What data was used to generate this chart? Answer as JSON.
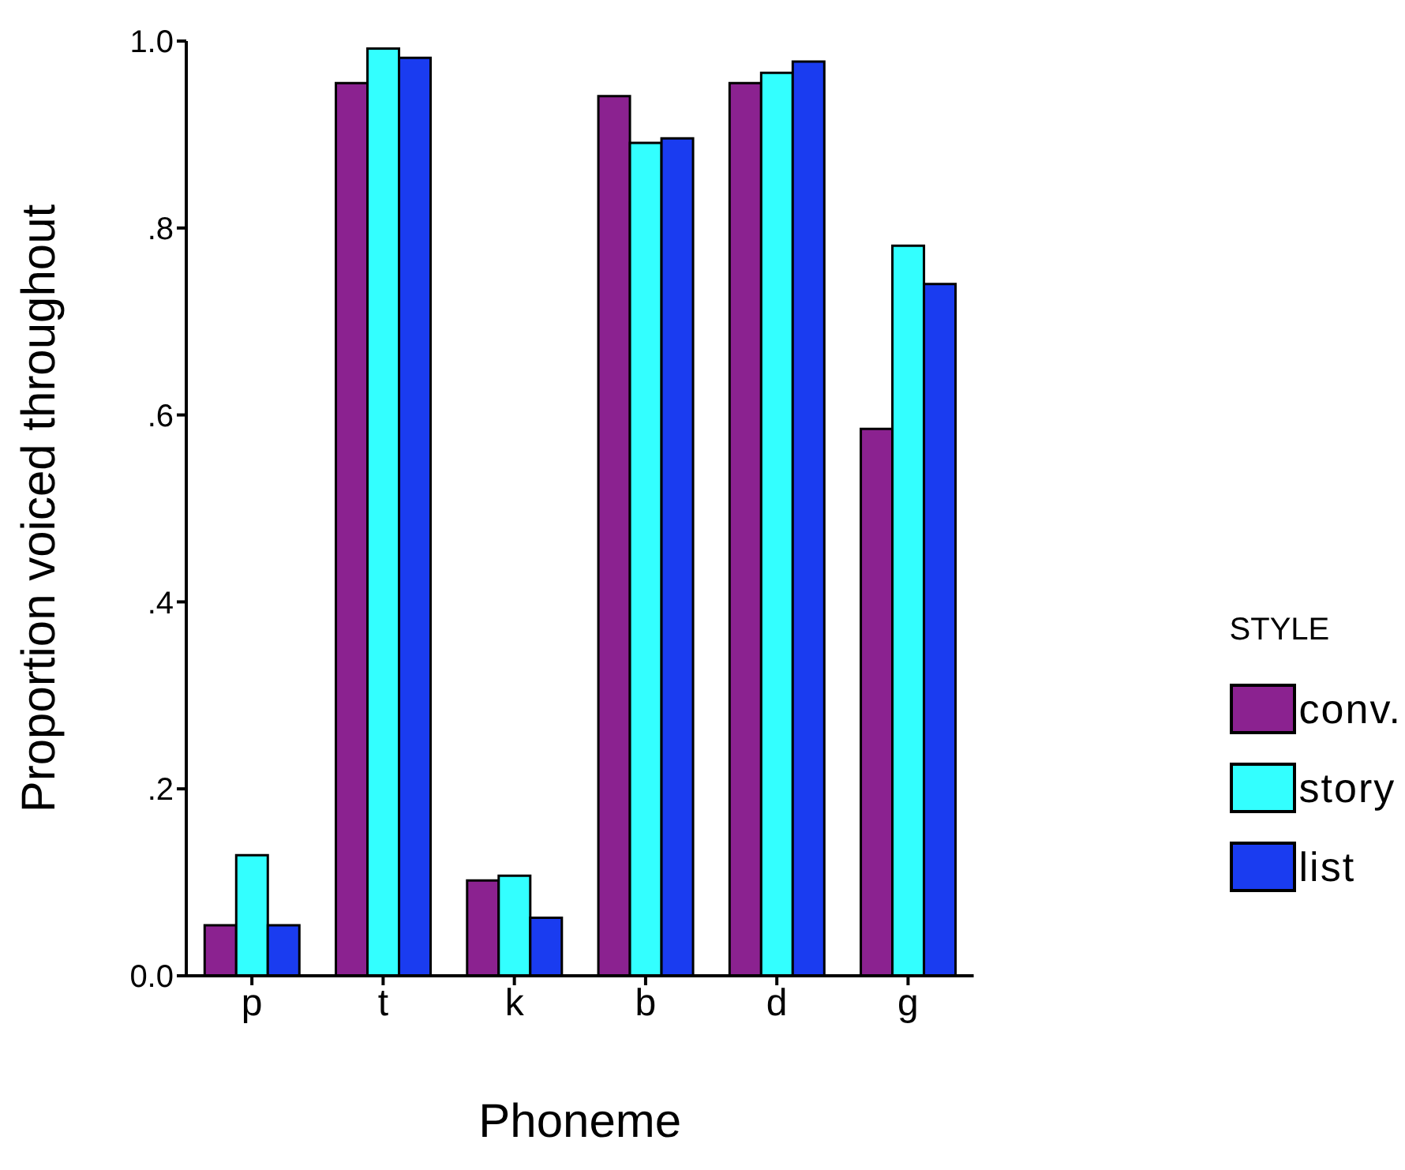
{
  "chart_data": {
    "type": "bar",
    "xlabel": "Phoneme",
    "ylabel": "Proportion voiced throughout",
    "legend_title": "STYLE",
    "legend": "right",
    "grid": false,
    "categories": [
      "p",
      "t",
      "k",
      "b",
      "d",
      "g"
    ],
    "series": [
      {
        "name": "conv.",
        "color": "#8b2290",
        "values": [
          0.054,
          0.955,
          0.102,
          0.941,
          0.955,
          0.585
        ]
      },
      {
        "name": "story",
        "color": "#33ffff",
        "values": [
          0.129,
          0.992,
          0.107,
          0.891,
          0.966,
          0.781
        ]
      },
      {
        "name": "list",
        "color": "#1a3cf0",
        "values": [
          0.054,
          0.982,
          0.062,
          0.896,
          0.978,
          0.74
        ]
      }
    ],
    "ylim": [
      0,
      1
    ],
    "yticks": [
      {
        "value": 0,
        "label": "0.0"
      },
      {
        "value": 0.2,
        "label": ".2"
      },
      {
        "value": 0.4,
        "label": ".4"
      },
      {
        "value": 0.6,
        "label": ".6"
      },
      {
        "value": 0.8,
        "label": ".8"
      },
      {
        "value": 1,
        "label": "1.0"
      }
    ]
  }
}
